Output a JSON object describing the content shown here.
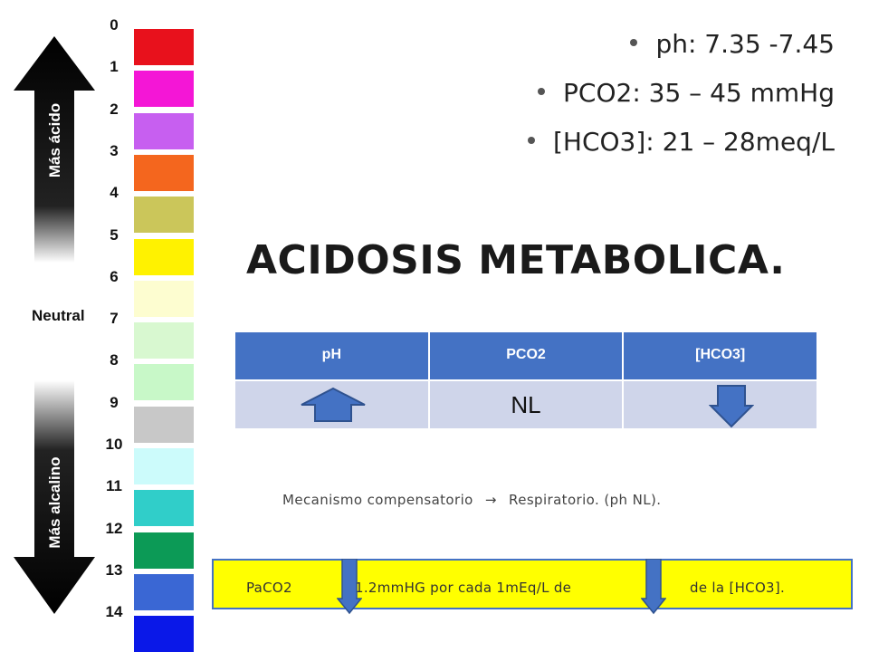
{
  "scale": {
    "numbers": [
      "0",
      "1",
      "2",
      "3",
      "4",
      "5",
      "6",
      "7",
      "8",
      "9",
      "10",
      "11",
      "12",
      "13",
      "14"
    ],
    "colors": [
      "#e8111c",
      "#f416d6",
      "#c75ff0",
      "#f4661e",
      "#cbc65a",
      "#fff200",
      "#fdfdd0",
      "#d8f8d0",
      "#c8f8c8",
      "#c8c8c8",
      "#ccfbfb",
      "#30cec9",
      "#0c9a56",
      "#3a67d4",
      "#0a18e8"
    ],
    "acid_label": "Más ácido",
    "neutral_label": "Neutral",
    "alkaline_label": "Más alcalino"
  },
  "bullets": [
    "ph: 7.35 -7.45",
    "PCO2: 35 – 45 mmHg",
    "[HCO3]: 21 – 28meq/L"
  ],
  "title": "ACIDOSIS METABOLICA.",
  "table": {
    "headers": [
      "pH",
      "PCO2",
      "[HCO3]"
    ],
    "row": {
      "ph_icon": "arrow-up",
      "pco2": "NL",
      "hco3_icon": "arrow-down"
    }
  },
  "mechanism": {
    "text_before": "Mecanismo compensatorio",
    "arrow": "→",
    "text_after": "Respiratorio. (ph NL)."
  },
  "note": {
    "part1": "PaCO2",
    "part2": "1.2mmHG por cada 1mEq/L de",
    "part3": "de la [HCO3]."
  }
}
